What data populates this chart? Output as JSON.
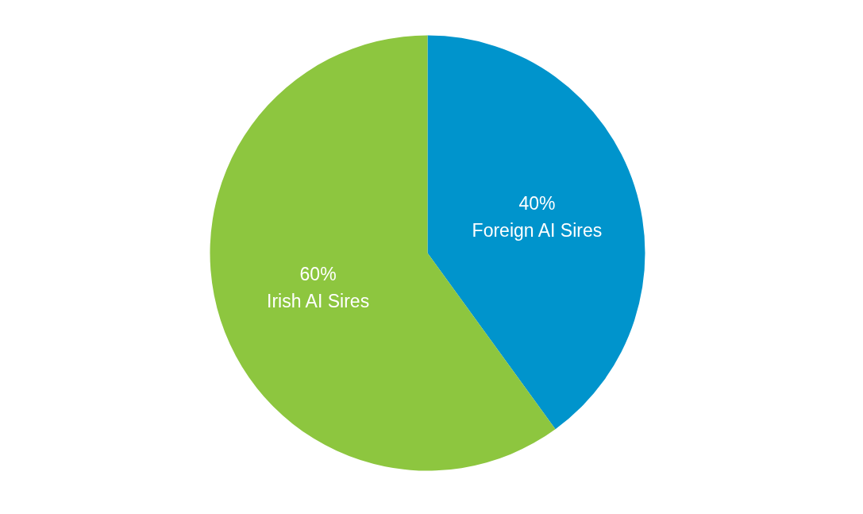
{
  "chart_data": {
    "type": "pie",
    "categories": [
      "Foreign AI Sires",
      "Irish AI Sires"
    ],
    "values": [
      40,
      60
    ],
    "colors": [
      "#0094cc",
      "#8dc63f"
    ],
    "value_labels": [
      "40%",
      "60%"
    ],
    "legend": false
  }
}
